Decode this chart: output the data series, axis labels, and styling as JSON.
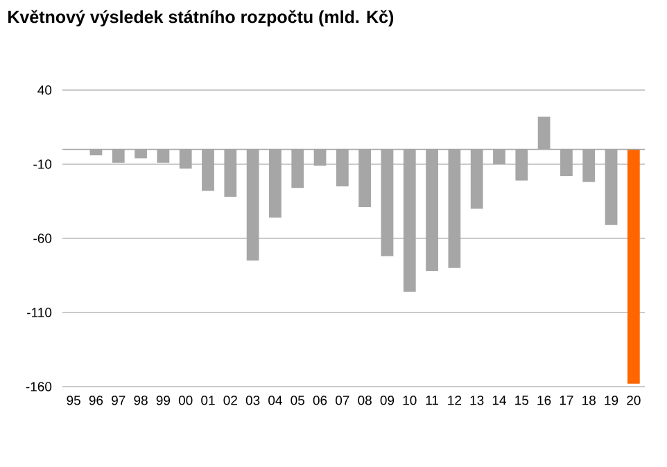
{
  "chart_data": {
    "type": "bar",
    "title": "Květnový výsledek státního rozpočtu (mld. Kč)",
    "categories": [
      "95",
      "96",
      "97",
      "98",
      "99",
      "00",
      "01",
      "02",
      "03",
      "04",
      "05",
      "06",
      "07",
      "08",
      "09",
      "10",
      "11",
      "12",
      "13",
      "14",
      "15",
      "16",
      "17",
      "18",
      "19",
      "20"
    ],
    "values": [
      null,
      -4,
      -9,
      -6,
      -9,
      -13,
      -28,
      -32,
      -75,
      -46,
      -26,
      -11,
      -25,
      -39,
      -72,
      -96,
      -82,
      -80,
      -40,
      -10,
      -21,
      22,
      -18,
      -22,
      -51,
      -158
    ],
    "colors": [
      "#a6a6a6",
      "#a6a6a6",
      "#a6a6a6",
      "#a6a6a6",
      "#a6a6a6",
      "#a6a6a6",
      "#a6a6a6",
      "#a6a6a6",
      "#a6a6a6",
      "#a6a6a6",
      "#a6a6a6",
      "#a6a6a6",
      "#a6a6a6",
      "#a6a6a6",
      "#a6a6a6",
      "#a6a6a6",
      "#a6a6a6",
      "#a6a6a6",
      "#a6a6a6",
      "#a6a6a6",
      "#a6a6a6",
      "#a6a6a6",
      "#a6a6a6",
      "#a6a6a6",
      "#a6a6a6",
      "#ff6600"
    ],
    "ylim": [
      -160,
      40
    ],
    "yticks": [
      40,
      -10,
      -60,
      -110,
      -160
    ],
    "grid": "y"
  }
}
